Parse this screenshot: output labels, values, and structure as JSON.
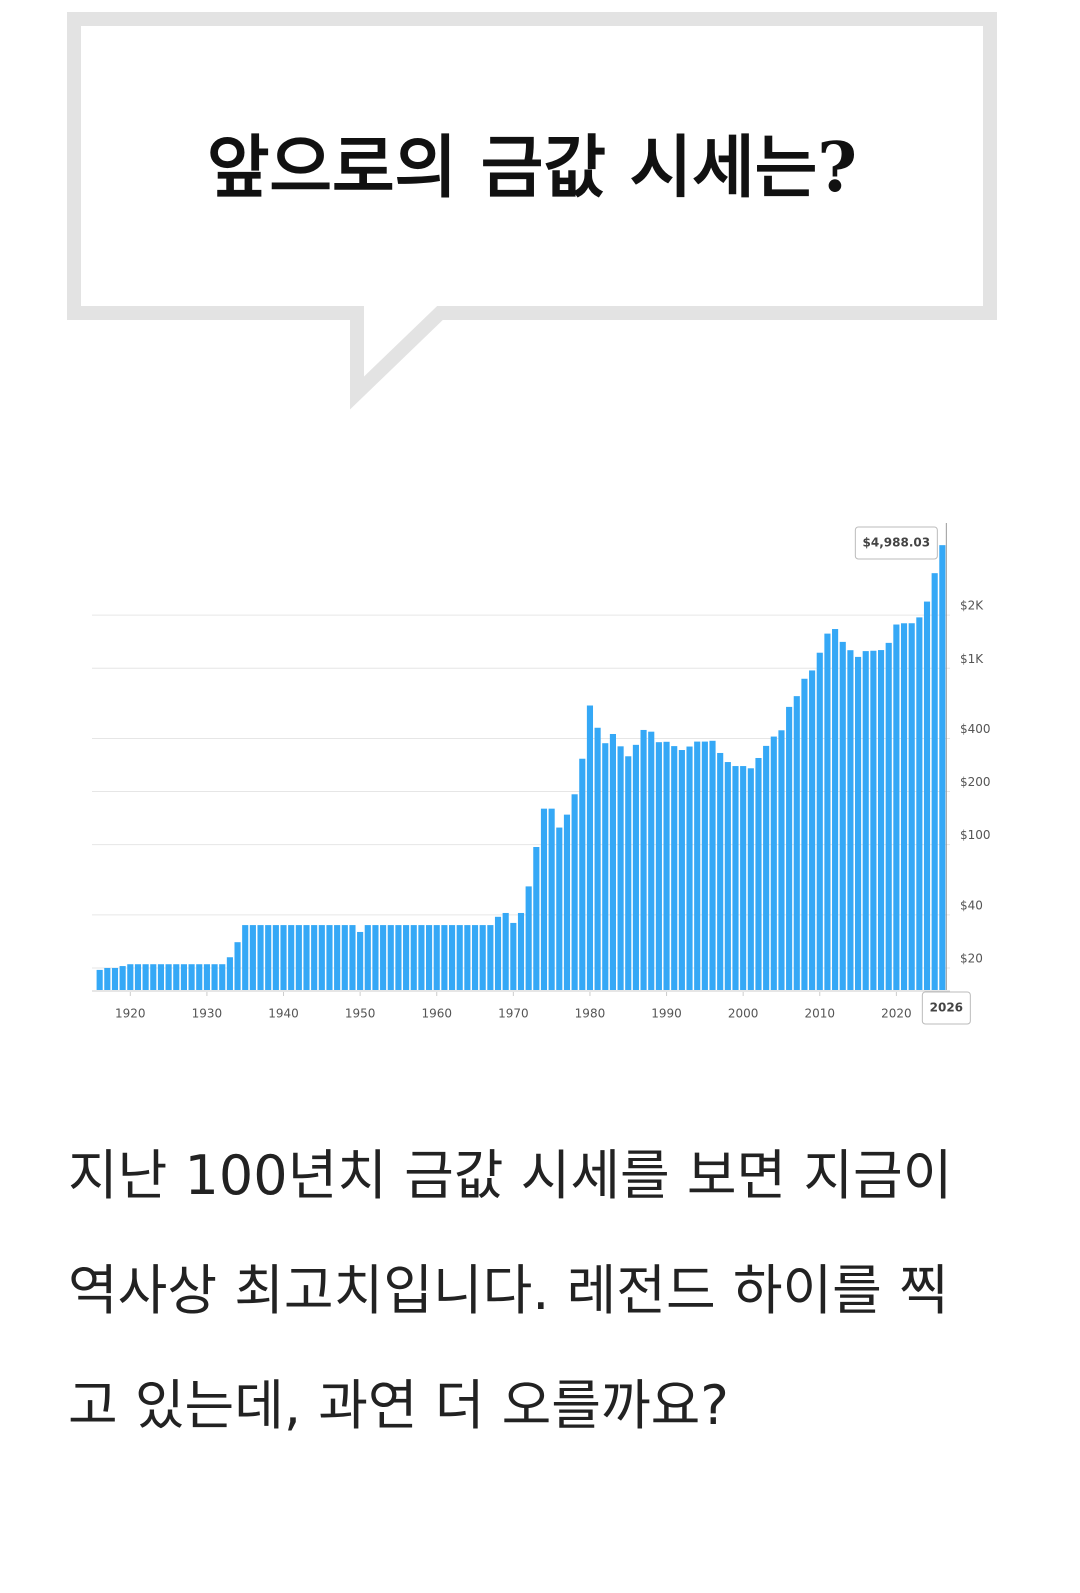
{
  "header": {
    "title": "앞으로의 금값 시세는?"
  },
  "chart_data": {
    "type": "bar",
    "log_scale": true,
    "grid": true,
    "color": "#35a8f6",
    "x": [
      1916,
      1917,
      1918,
      1919,
      1920,
      1921,
      1922,
      1923,
      1924,
      1925,
      1926,
      1927,
      1928,
      1929,
      1930,
      1931,
      1932,
      1933,
      1934,
      1935,
      1936,
      1937,
      1938,
      1939,
      1940,
      1941,
      1942,
      1943,
      1944,
      1945,
      1946,
      1947,
      1948,
      1949,
      1950,
      1951,
      1952,
      1953,
      1954,
      1955,
      1956,
      1957,
      1958,
      1959,
      1960,
      1961,
      1962,
      1963,
      1964,
      1965,
      1966,
      1967,
      1968,
      1969,
      1970,
      1971,
      1972,
      1973,
      1974,
      1975,
      1976,
      1977,
      1978,
      1979,
      1980,
      1981,
      1982,
      1983,
      1984,
      1985,
      1986,
      1987,
      1988,
      1989,
      1990,
      1991,
      1992,
      1993,
      1994,
      1995,
      1996,
      1997,
      1998,
      1999,
      2000,
      2001,
      2002,
      2003,
      2004,
      2005,
      2006,
      2007,
      2008,
      2009,
      2010,
      2011,
      2012,
      2013,
      2014,
      2015,
      2016,
      2017,
      2018,
      2019,
      2020,
      2021,
      2022,
      2023,
      2024,
      2025,
      2026
    ],
    "values": [
      19.5,
      20,
      20,
      20.5,
      21,
      21,
      21,
      21,
      21,
      21,
      21,
      21,
      21,
      21,
      21,
      21,
      21,
      23,
      28,
      35,
      35,
      35,
      35,
      35,
      35,
      35,
      35,
      35,
      35,
      35,
      35,
      35,
      35,
      35,
      32,
      35,
      35,
      35,
      35,
      35,
      35,
      35,
      35,
      35,
      35,
      35,
      35,
      35,
      35,
      35,
      35,
      35,
      39,
      41,
      36,
      41,
      58,
      97,
      160,
      160,
      125,
      148,
      193,
      307,
      615,
      460,
      376,
      424,
      361,
      317,
      368,
      447,
      437,
      381,
      383,
      362,
      344,
      360,
      384,
      384,
      388,
      331,
      294,
      279,
      279,
      271,
      310,
      363,
      410,
      445,
      604,
      695,
      872,
      972,
      1225,
      1572,
      1669,
      1411,
      1266,
      1160,
      1251,
      1257,
      1268,
      1393,
      1770,
      1799,
      1800,
      1943,
      2388,
      3460,
      4988.03
    ],
    "tooltip": "$4,988.03",
    "xlim": [
      1915,
      2027
    ],
    "xticks": [
      1920,
      1930,
      1940,
      1950,
      1960,
      1970,
      1980,
      1990,
      2000,
      2010,
      2020
    ],
    "ylim": [
      15,
      6000
    ],
    "yticks": [
      {
        "value": 20,
        "label": "$20"
      },
      {
        "value": 40,
        "label": "$40"
      },
      {
        "value": 100,
        "label": "$100"
      },
      {
        "value": 200,
        "label": "$200"
      },
      {
        "value": 400,
        "label": "$400"
      },
      {
        "value": 1000,
        "label": "$1K"
      },
      {
        "value": 2000,
        "label": "$2K"
      }
    ]
  },
  "body": "지난 100년치 금값 시세를 보면 지금이 역사상 최고치입니다. 레전드 하이를 찍고 있는데, 과연 더 오를까요?"
}
